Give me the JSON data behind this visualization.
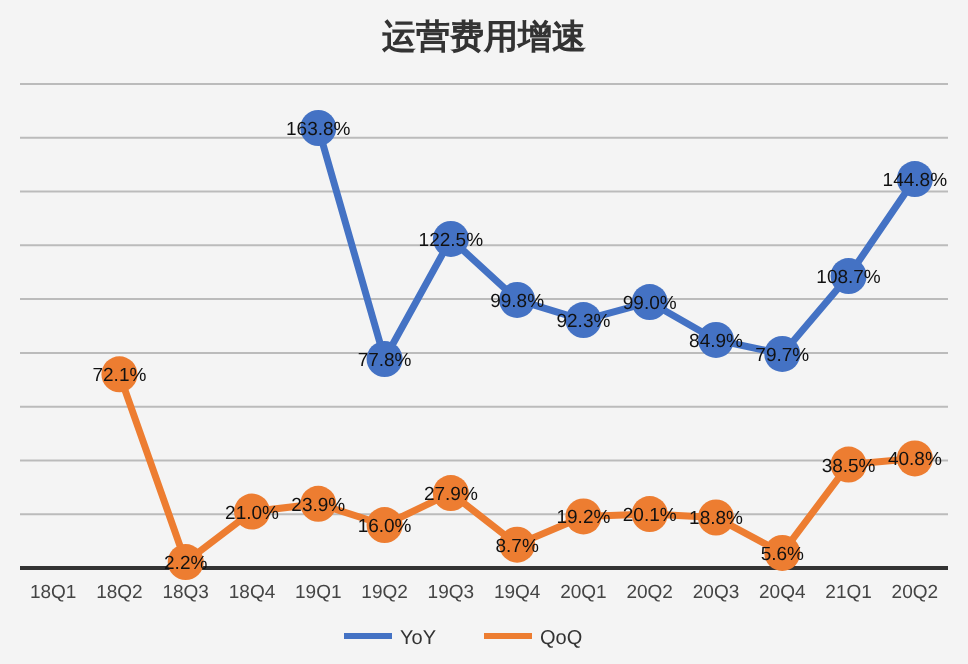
{
  "chart_data": {
    "type": "line",
    "title": "运营费用增速",
    "categories": [
      "18Q1",
      "18Q2",
      "18Q3",
      "18Q4",
      "19Q1",
      "19Q2",
      "19Q3",
      "19Q4",
      "20Q1",
      "20Q2",
      "20Q3",
      "20Q4",
      "21Q1",
      "20Q2"
    ],
    "series": [
      {
        "name": "YoY",
        "color": "#4472c4",
        "values": [
          null,
          null,
          null,
          null,
          163.8,
          77.8,
          122.5,
          99.8,
          92.3,
          99.0,
          84.9,
          79.7,
          108.7,
          144.8
        ],
        "value_labels": [
          null,
          null,
          null,
          null,
          "163.8%",
          "77.8%",
          "122.5%",
          "99.8%",
          "92.3%",
          "99.0%",
          "84.9%",
          "79.7%",
          "108.7%",
          "144.8%"
        ]
      },
      {
        "name": "QoQ",
        "color": "#ed7d31",
        "values": [
          null,
          72.1,
          2.2,
          21.0,
          23.9,
          16.0,
          27.9,
          8.7,
          19.2,
          20.1,
          18.8,
          5.6,
          38.5,
          40.8
        ],
        "value_labels": [
          null,
          "72.1%",
          "2.2%",
          "21.0%",
          "23.9%",
          "16.0%",
          "27.9%",
          "8.7%",
          "19.2%",
          "20.1%",
          "18.8%",
          "5.6%",
          "38.5%",
          "40.8%"
        ]
      }
    ],
    "tick_labels": "x",
    "grid": "y",
    "legend": "bottom",
    "marker": "circle",
    "line_style": "solid"
  }
}
